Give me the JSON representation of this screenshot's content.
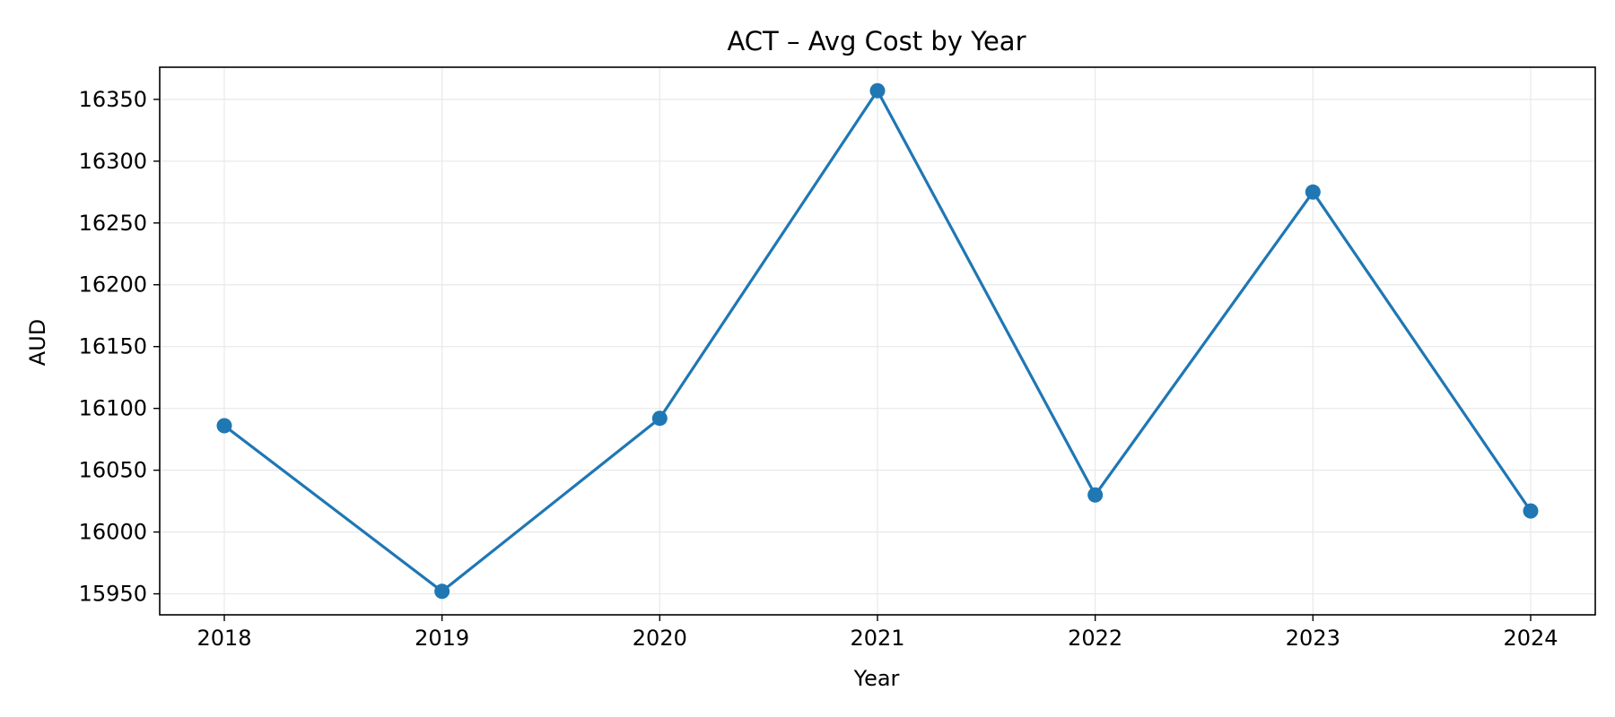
{
  "chart_data": {
    "type": "line",
    "title": "ACT – Avg Cost by Year",
    "xlabel": "Year",
    "ylabel": "AUD",
    "categories": [
      "2018",
      "2019",
      "2020",
      "2021",
      "2022",
      "2023",
      "2024"
    ],
    "series": [
      {
        "values": [
          16086,
          15952,
          16092,
          16357,
          16030,
          16275,
          16017
        ],
        "color": "#1f77b4",
        "marker": "circle"
      }
    ],
    "yticks": [
      15950,
      16000,
      16050,
      16100,
      16150,
      16200,
      16250,
      16300,
      16350
    ],
    "ylim": [
      15933,
      16376
    ],
    "grid": true,
    "legend": "none"
  }
}
